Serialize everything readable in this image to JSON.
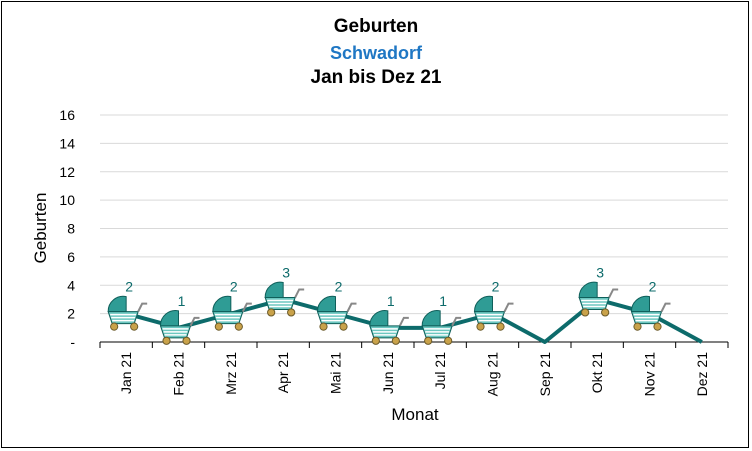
{
  "chart_data": {
    "type": "line",
    "title": "Geburten",
    "subtitle": "Schwadorf",
    "subtitle2": "Jan bis Dez 21",
    "xlabel": "Monat",
    "ylabel": "Geburten",
    "categories": [
      "Jan 21",
      "Feb 21",
      "Mrz 21",
      "Apr 21",
      "Mai 21",
      "Jun 21",
      "Jul 21",
      "Aug 21",
      "Sep 21",
      "Okt 21",
      "Nov 21",
      "Dez 21"
    ],
    "series": [
      {
        "values": [
          2,
          1,
          2,
          3,
          2,
          1,
          1,
          2,
          0,
          3,
          2,
          0
        ]
      }
    ],
    "data_labels": [
      "2",
      "1",
      "2",
      "3",
      "2",
      "1",
      "1",
      "2",
      "",
      "3",
      "2",
      ""
    ],
    "yticks": [
      "-",
      "2",
      "4",
      "6",
      "8",
      "10",
      "12",
      "14",
      "16"
    ],
    "ylim": [
      0,
      16
    ],
    "grid": true,
    "line_color": "#0d6b6b",
    "label_color": "#0d6b6b",
    "marker_icon": "baby-carriage-icon",
    "marker_color": "#3aa6a0"
  }
}
